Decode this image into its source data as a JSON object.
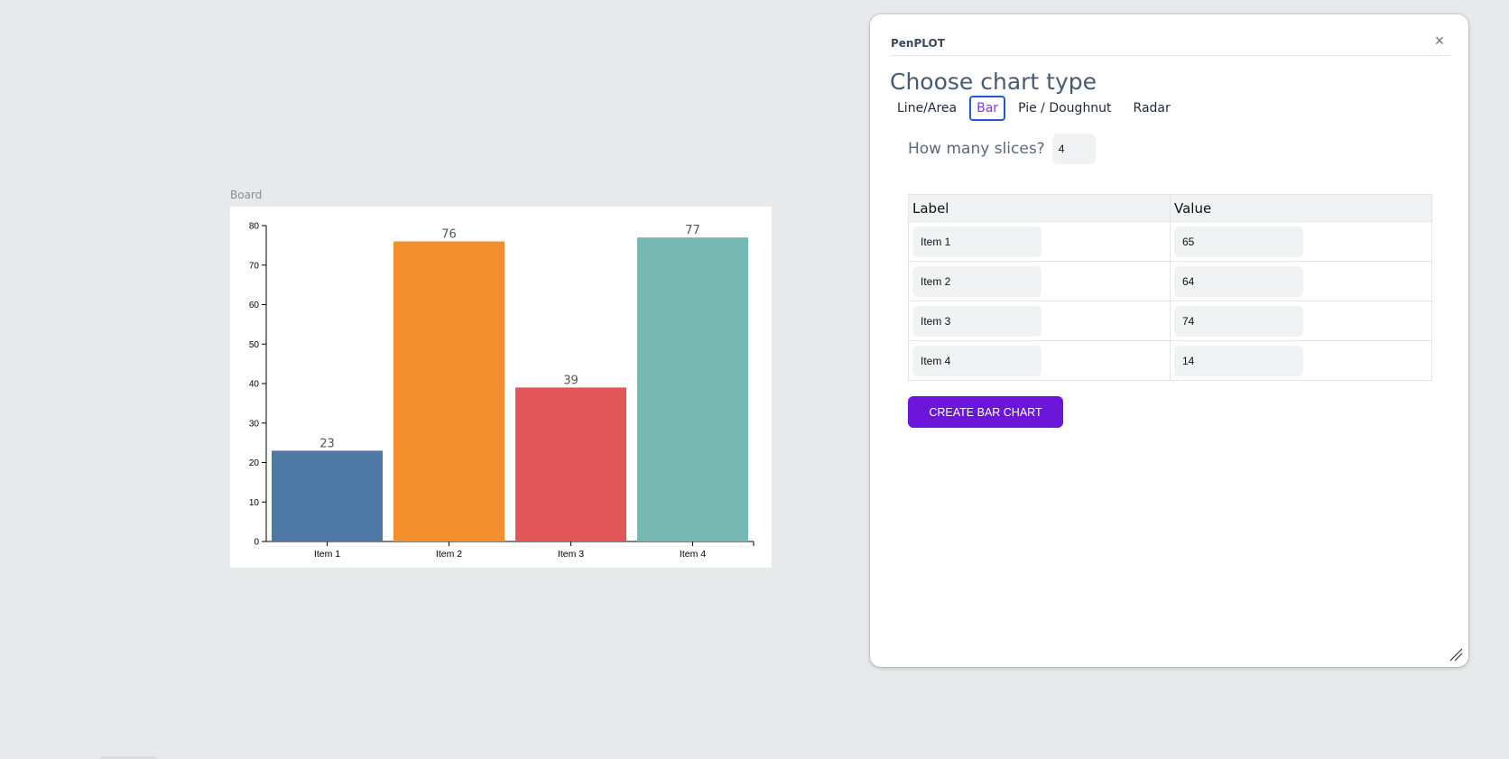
{
  "board": {
    "label": "Board"
  },
  "chart_data": {
    "type": "bar",
    "categories": [
      "Item 1",
      "Item 2",
      "Item 3",
      "Item 4"
    ],
    "values": [
      23,
      76,
      39,
      77
    ],
    "colors": [
      "#4e79a7",
      "#f28e2c",
      "#e15759",
      "#76b7b2"
    ],
    "ylim": [
      0,
      80
    ],
    "yticks": [
      0,
      10,
      20,
      30,
      40,
      50,
      60,
      70,
      80
    ],
    "title": "",
    "xlabel": "",
    "ylabel": "",
    "grid": false,
    "value_labels": true
  },
  "panel": {
    "app_name": "PenPLOT",
    "close_icon": "close-icon",
    "heading": "Choose chart type",
    "tabs": [
      {
        "label": "Line/Area",
        "active": false
      },
      {
        "label": "Bar",
        "active": true
      },
      {
        "label": "Pie / Doughnut",
        "active": false
      },
      {
        "label": "Radar",
        "active": false
      }
    ],
    "slices_label": "How many slices?",
    "slices_value": "4",
    "table": {
      "headers": [
        "Label",
        "Value"
      ],
      "rows": [
        {
          "label": "Item 1",
          "value": "65"
        },
        {
          "label": "Item 2",
          "value": "64"
        },
        {
          "label": "Item 3",
          "value": "74"
        },
        {
          "label": "Item 4",
          "value": "14"
        }
      ]
    },
    "create_button": "CREATE BAR CHART",
    "accent_color": "#6c16db"
  }
}
